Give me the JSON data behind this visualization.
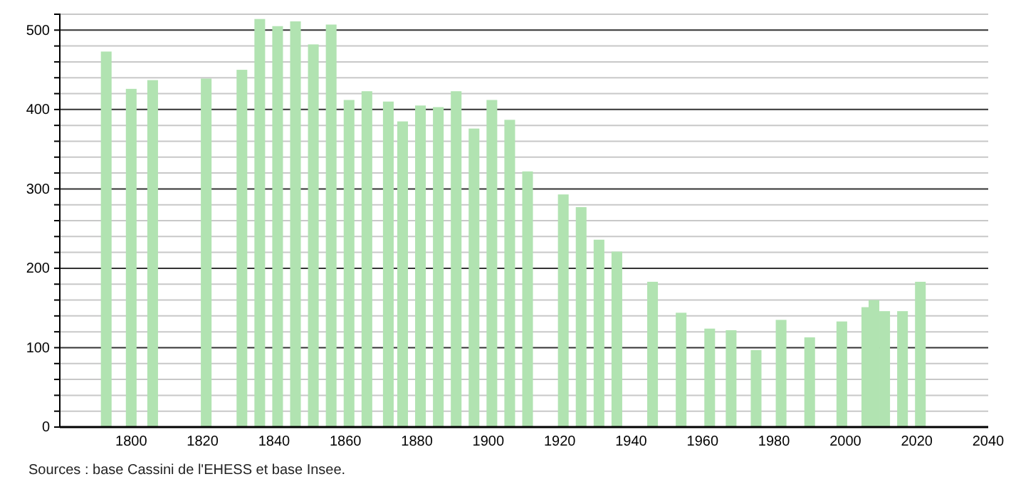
{
  "chart_data": {
    "type": "bar",
    "x": [
      1793,
      1800,
      1806,
      1821,
      1831,
      1836,
      1841,
      1846,
      1851,
      1856,
      1861,
      1866,
      1872,
      1876,
      1881,
      1886,
      1891,
      1896,
      1901,
      1906,
      1911,
      1921,
      1926,
      1931,
      1936,
      1946,
      1954,
      1962,
      1968,
      1975,
      1982,
      1990,
      1999,
      2006,
      2008,
      2011,
      2016,
      2021
    ],
    "values": [
      473,
      426,
      437,
      439,
      450,
      514,
      505,
      511,
      482,
      507,
      412,
      423,
      410,
      385,
      405,
      403,
      423,
      376,
      412,
      387,
      322,
      293,
      277,
      236,
      221,
      183,
      144,
      124,
      122,
      97,
      135,
      113,
      133,
      151,
      160,
      146,
      146,
      183
    ],
    "color": "#b1e3b1",
    "xlim": [
      1780,
      2040
    ],
    "xticks": [
      1800,
      1820,
      1840,
      1860,
      1880,
      1900,
      1920,
      1940,
      1960,
      1980,
      2000,
      2020,
      2040
    ],
    "ylim": [
      0,
      520
    ],
    "yticks": [
      0,
      {
        "value": 20,
        "label": null
      },
      {
        "value": 40,
        "label": null
      },
      {
        "value": 60,
        "label": null
      },
      {
        "value": 80,
        "label": null
      },
      100,
      {
        "value": 120,
        "label": null
      },
      {
        "value": 140,
        "label": null
      },
      {
        "value": 160,
        "label": null
      },
      {
        "value": 180,
        "label": null
      },
      200,
      {
        "value": 220,
        "label": null
      },
      {
        "value": 240,
        "label": null
      },
      {
        "value": 260,
        "label": null
      },
      {
        "value": 280,
        "label": null
      },
      300,
      {
        "value": 320,
        "label": null
      },
      {
        "value": 340,
        "label": null
      },
      {
        "value": 360,
        "label": null
      },
      {
        "value": 380,
        "label": null
      },
      400,
      {
        "value": 420,
        "label": null
      },
      {
        "value": 440,
        "label": null
      },
      {
        "value": 460,
        "label": null
      },
      {
        "value": 480,
        "label": null
      },
      500,
      {
        "value": 520,
        "label": null
      }
    ],
    "grid": true,
    "annotations": [
      "Sources : base Cassini de l'EHESS et base Insee."
    ]
  }
}
